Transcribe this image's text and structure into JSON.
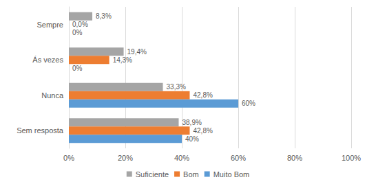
{
  "chart_data": {
    "type": "bar",
    "orientation": "horizontal",
    "categories": [
      "Sempre",
      "Ás vezes",
      "Nunca",
      "Sem resposta"
    ],
    "series": [
      {
        "name": "Suficiente",
        "color": "#a5a5a5",
        "values": [
          8.3,
          19.4,
          33.3,
          38.9
        ],
        "value_labels": [
          "8,3%",
          "19,4%",
          "33,3%",
          "38,9%"
        ]
      },
      {
        "name": "Bom",
        "color": "#ed7d31",
        "values": [
          0,
          14.3,
          42.8,
          42.8
        ],
        "value_labels": [
          "0,0%",
          "14,3%",
          "42,8%",
          "42,8%"
        ]
      },
      {
        "name": "Muito Bom",
        "color": "#5b9bd5",
        "values": [
          0,
          0,
          60,
          40
        ],
        "value_labels": [
          "0%",
          "0%",
          "60%",
          "40%"
        ]
      }
    ],
    "xlim": [
      0,
      100
    ],
    "xticks": [
      {
        "value": 0,
        "label": "0%"
      },
      {
        "value": 20,
        "label": "20%"
      },
      {
        "value": 40,
        "label": "40%"
      },
      {
        "value": 60,
        "label": "60%"
      },
      {
        "value": 80,
        "label": "80%"
      },
      {
        "value": 100,
        "label": "100%"
      }
    ],
    "grid": true,
    "legend": "bottom",
    "data_labels": true
  }
}
